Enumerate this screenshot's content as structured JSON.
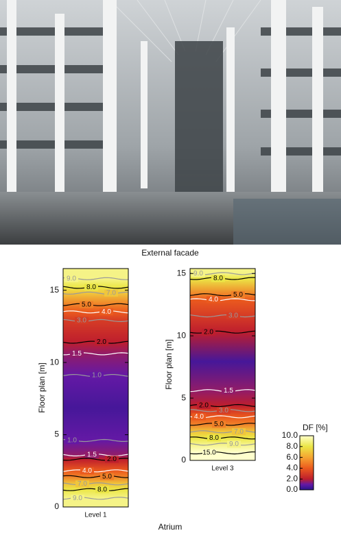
{
  "photo_caption": "External facade",
  "figure_caption": "Atrium",
  "plots": [
    {
      "x_label": "Level 1",
      "y_label": "Floor plan [m]",
      "ylim": [
        0,
        16.5
      ],
      "yticks": [
        0,
        5,
        10,
        15
      ],
      "contours": [
        {
          "value": 9,
          "label": "9.0",
          "y": 15.8
        },
        {
          "value": 8,
          "label": "8.0",
          "y": 15.2
        },
        {
          "value": 7,
          "label": "7.0",
          "y": 14.8
        },
        {
          "value": 5,
          "label": "5.0",
          "y": 14.0
        },
        {
          "value": 4,
          "label": "4.0",
          "y": 13.5
        },
        {
          "value": 3,
          "label": "3.0",
          "y": 12.9
        },
        {
          "value": 2,
          "label": "2.0",
          "y": 11.4
        },
        {
          "value": 1.5,
          "label": "1.5",
          "y": 10.6
        },
        {
          "value": 1,
          "label": "1.0",
          "y": 9.1
        },
        {
          "value": 1,
          "label": "1.0",
          "y": 4.6
        },
        {
          "value": 1.5,
          "label": "1.5",
          "y": 3.6
        },
        {
          "value": 2,
          "label": "2.0",
          "y": 3.3
        },
        {
          "value": 4,
          "label": "4.0",
          "y": 2.5
        },
        {
          "value": 5,
          "label": "5.0",
          "y": 2.1
        },
        {
          "value": 7,
          "label": "7.0",
          "y": 1.6
        },
        {
          "value": 8,
          "label": "8.0",
          "y": 1.2
        },
        {
          "value": 9,
          "label": "9.0",
          "y": 0.6
        }
      ]
    },
    {
      "x_label": "Level 3",
      "y_label": "Floor plan [m]",
      "ylim": [
        0,
        15.4
      ],
      "yticks": [
        0,
        5,
        10,
        15
      ],
      "contours": [
        {
          "value": 9,
          "label": "9.0",
          "y": 15.0
        },
        {
          "value": 8,
          "label": "8.0",
          "y": 14.6
        },
        {
          "value": 5,
          "label": "5.0",
          "y": 13.3
        },
        {
          "value": 4,
          "label": "4.0",
          "y": 12.9
        },
        {
          "value": 3,
          "label": "3.0",
          "y": 11.6
        },
        {
          "value": 2,
          "label": "2.0",
          "y": 10.3
        },
        {
          "value": 1.5,
          "label": "1.5",
          "y": 5.6
        },
        {
          "value": 2,
          "label": "2.0",
          "y": 4.4
        },
        {
          "value": 3,
          "label": "3.0",
          "y": 4.0
        },
        {
          "value": 4,
          "label": "4.0",
          "y": 3.5
        },
        {
          "value": 5,
          "label": "5.0",
          "y": 2.9
        },
        {
          "value": 7,
          "label": "7.0",
          "y": 2.3
        },
        {
          "value": 8,
          "label": "8.0",
          "y": 1.8
        },
        {
          "value": 9,
          "label": "9.0",
          "y": 1.3
        },
        {
          "value": 15,
          "label": "15.0",
          "y": 0.6
        }
      ]
    }
  ],
  "colorbar": {
    "label": "DF [%]",
    "lim": [
      0,
      10
    ],
    "ticks": [
      {
        "value": 0,
        "label": "0.0"
      },
      {
        "value": 2,
        "label": "2.0"
      },
      {
        "value": 4,
        "label": "4.0"
      },
      {
        "value": 6,
        "label": "6.0"
      },
      {
        "value": 8,
        "label": "8.0"
      },
      {
        "value": 10,
        "label": "10.0"
      }
    ]
  }
}
